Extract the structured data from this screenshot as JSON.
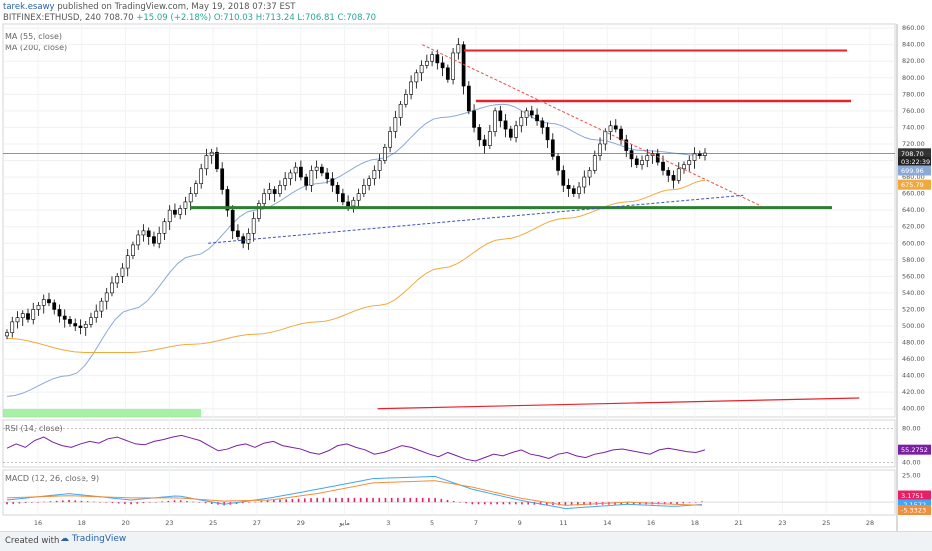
{
  "header": {
    "author": "tarek.esawy",
    "published_text": "published on TradingView.com, May 19, 2018 07:37 EST",
    "symbol_line": "BITFINEX:ETHUSD, 240",
    "last": "708.70",
    "change": "+15.09 (+2.18%)",
    "ohlc": "O:710.03 H:713.24 L:706.81 C:708.70"
  },
  "indicators": {
    "ma55": "MA (55, close)",
    "ma200": "MA (200, close)",
    "rsi": "RSI (14, close)",
    "macd": "MACD (12, 26, close, 9)"
  },
  "price_tags": {
    "last_price": "708.70",
    "countdown": "03:22:39",
    "ma55": "699.96",
    "ma200": "675.79",
    "rsi": "55.2752",
    "macd1": "3.1751",
    "macd2": "-2.1572",
    "macd3": "-5.3323"
  },
  "footer": {
    "created_with": "Created with",
    "brand": "TradingView"
  },
  "colors": {
    "up": "#ffffff",
    "down": "#000000",
    "ma55": "#8aa9d6",
    "ma200": "#f2a93b",
    "resistance": "#e8222a",
    "support": "#2e7d32",
    "rsi": "#7b1fa2",
    "macd": "#42a5f5",
    "signal": "#ef8e3b",
    "hist": "#e91e63",
    "rsi_band": "#90ee90"
  },
  "chart_data": {
    "type": "candlestick",
    "price_axis": {
      "ylim": [
        390,
        865
      ],
      "ticks": [
        400,
        420,
        440,
        460,
        480,
        500,
        520,
        540,
        560,
        580,
        600,
        620,
        640,
        660,
        680,
        700,
        720,
        740,
        760,
        780,
        800,
        820,
        840,
        860
      ]
    },
    "rsi_axis": {
      "ylim": [
        35,
        90
      ],
      "ticks": [
        40.0,
        80.0
      ]
    },
    "macd_axis": {
      "ylim": [
        -12,
        30
      ],
      "ticks": [
        25.0
      ]
    },
    "time_axis": {
      "ticks": [
        "16",
        "18",
        "20",
        "23",
        "25",
        "27",
        "29",
        "مايو",
        "3",
        "5",
        "7",
        "9",
        "11",
        "14",
        "16",
        "18",
        "21",
        "23",
        "25",
        "28"
      ]
    },
    "close_series": [
      492,
      505,
      510,
      515,
      508,
      520,
      525,
      532,
      528,
      520,
      512,
      508,
      503,
      500,
      498,
      502,
      510,
      518,
      530,
      540,
      552,
      560,
      570,
      585,
      598,
      610,
      615,
      608,
      600,
      612,
      626,
      640,
      635,
      642,
      650,
      660,
      672,
      690,
      706,
      710,
      690,
      665,
      640,
      615,
      608,
      600,
      612,
      630,
      648,
      660,
      665,
      660,
      670,
      678,
      685,
      692,
      680,
      670,
      688,
      692,
      685,
      678,
      670,
      660,
      650,
      645,
      652,
      660,
      670,
      678,
      688,
      700,
      716,
      735,
      752,
      768,
      780,
      795,
      806,
      815,
      820,
      828,
      818,
      812,
      798,
      830,
      840,
      790,
      760,
      740,
      725,
      718,
      735,
      760,
      748,
      738,
      728,
      742,
      752,
      760,
      755,
      748,
      740,
      725,
      705,
      688,
      670,
      666,
      660,
      668,
      680,
      688,
      706,
      720,
      735,
      742,
      738,
      725,
      712,
      702,
      695,
      700,
      706,
      708,
      698,
      688,
      682,
      676,
      690,
      695,
      700,
      708,
      706,
      709
    ],
    "ma55_series_anchors": [
      [
        0,
        415
      ],
      [
        20,
        440
      ],
      [
        40,
        520
      ],
      [
        60,
        585
      ],
      [
        80,
        640
      ],
      [
        100,
        672
      ],
      [
        120,
        702
      ],
      [
        140,
        752
      ],
      [
        160,
        768
      ],
      [
        175,
        745
      ],
      [
        190,
        725
      ],
      [
        205,
        712
      ],
      [
        225,
        706
      ]
    ],
    "ma200_series_anchors": [
      [
        0,
        485
      ],
      [
        25,
        468
      ],
      [
        40,
        468
      ],
      [
        60,
        478
      ],
      [
        80,
        490
      ],
      [
        100,
        505
      ],
      [
        120,
        525
      ],
      [
        140,
        570
      ],
      [
        160,
        605
      ],
      [
        180,
        630
      ],
      [
        200,
        650
      ],
      [
        215,
        665
      ],
      [
        225,
        676
      ]
    ],
    "rsi_series": [
      57,
      62,
      58,
      66,
      70,
      64,
      60,
      58,
      62,
      65,
      63,
      68,
      70,
      66,
      62,
      61,
      65,
      67,
      70,
      72,
      69,
      66,
      60,
      54,
      56,
      60,
      62,
      58,
      63,
      65,
      60,
      58,
      56,
      52,
      50,
      54,
      60,
      62,
      58,
      55,
      50,
      52,
      56,
      60,
      58,
      54,
      50,
      47,
      52,
      48,
      44,
      42,
      46,
      50,
      48,
      52,
      55,
      50,
      48,
      45,
      50,
      52,
      48,
      46,
      50,
      52,
      55,
      56,
      54,
      52,
      50,
      55,
      57,
      55,
      53,
      52,
      55
    ],
    "macd_line_anchors": [
      [
        0,
        2
      ],
      [
        20,
        8
      ],
      [
        40,
        2
      ],
      [
        55,
        6
      ],
      [
        70,
        -2
      ],
      [
        85,
        4
      ],
      [
        100,
        12
      ],
      [
        118,
        22
      ],
      [
        138,
        24
      ],
      [
        150,
        12
      ],
      [
        165,
        2
      ],
      [
        180,
        -6
      ],
      [
        200,
        -2
      ],
      [
        215,
        -4
      ],
      [
        225,
        -2
      ]
    ],
    "signal_line_anchors": [
      [
        0,
        4
      ],
      [
        20,
        6
      ],
      [
        40,
        4
      ],
      [
        55,
        4
      ],
      [
        70,
        1
      ],
      [
        85,
        2
      ],
      [
        100,
        8
      ],
      [
        118,
        18
      ],
      [
        138,
        20
      ],
      [
        150,
        14
      ],
      [
        165,
        4
      ],
      [
        180,
        -3
      ],
      [
        200,
        0
      ],
      [
        215,
        -2
      ],
      [
        225,
        -3
      ]
    ],
    "levels": {
      "support": 643,
      "resistance_1": 772,
      "resistance_2": 833,
      "current_line": 708.7
    },
    "trendlines": [
      {
        "name": "descending",
        "from": [
          0.47,
          840
        ],
        "to": [
          0.85,
          645
        ]
      },
      {
        "name": "ascending",
        "from": [
          0.23,
          600
        ],
        "to": [
          0.83,
          658
        ]
      },
      {
        "name": "long-red",
        "from": [
          0.42,
          400
        ],
        "to": [
          0.96,
          413
        ]
      }
    ]
  }
}
